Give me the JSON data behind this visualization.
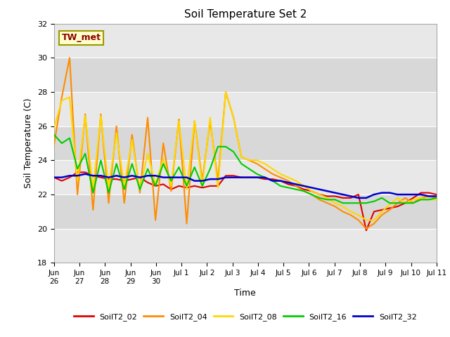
{
  "title": "Soil Temperature Set 2",
  "ylabel": "Soil Temperature (C)",
  "xlabel": "Time",
  "ylim": [
    18,
    32
  ],
  "xlim": [
    0,
    15
  ],
  "annotation_text": "TW_met",
  "annotation_fg": "#8B0000",
  "annotation_bg": "#FFFFCC",
  "annotation_border": "#999900",
  "fig_bg": "#ffffff",
  "band_colors": [
    "#E8E8E8",
    "#D8D8D8"
  ],
  "yticks": [
    18,
    20,
    22,
    24,
    26,
    28,
    30,
    32
  ],
  "tick_labels": [
    "Jun\n26",
    "Jun\n27",
    "Jun\n28",
    "Jun\n29",
    "Jun\n30",
    "Jul 1",
    "Jul 2",
    "Jul 3",
    "Jul 4",
    "Jul 5",
    "Jul 6",
    "Jul 7",
    "Jul 8",
    "Jul 9",
    "Jul 10",
    "Jul 11"
  ],
  "series": {
    "SoilT2_02": {
      "color": "#DD0000",
      "lw": 1.5,
      "y": [
        23.0,
        22.8,
        23.0,
        23.3,
        23.3,
        23.1,
        23.0,
        22.9,
        22.9,
        22.8,
        22.9,
        23.0,
        22.7,
        22.5,
        22.6,
        22.3,
        22.5,
        22.4,
        22.5,
        22.4,
        22.5,
        22.5,
        23.1,
        23.1,
        23.0,
        23.0,
        23.0,
        22.9,
        22.9,
        22.8,
        22.6,
        22.5,
        22.3,
        22.2,
        22.0,
        21.9,
        21.9,
        21.8,
        21.8,
        22.0,
        19.9,
        21.0,
        21.1,
        21.2,
        21.3,
        21.5,
        21.8,
        22.1,
        22.1,
        22.0
      ]
    },
    "SoilT2_04": {
      "color": "#FF8C00",
      "lw": 1.5,
      "y": [
        24.9,
        27.7,
        30.0,
        22.0,
        26.7,
        21.1,
        26.7,
        21.5,
        26.0,
        21.5,
        25.5,
        22.1,
        26.5,
        20.5,
        25.0,
        22.2,
        26.4,
        20.3,
        26.3,
        22.8,
        26.3,
        22.8,
        28.0,
        26.5,
        24.2,
        24.0,
        23.8,
        23.5,
        23.2,
        23.0,
        22.8,
        22.5,
        22.2,
        22.0,
        21.7,
        21.5,
        21.3,
        21.0,
        20.8,
        20.5,
        20.0,
        20.3,
        20.8,
        21.1,
        21.5,
        21.8,
        21.5,
        21.8,
        21.9,
        21.8
      ]
    },
    "SoilT2_08": {
      "color": "#FFD700",
      "lw": 1.5,
      "y": [
        25.9,
        27.5,
        27.7,
        22.8,
        26.6,
        22.3,
        26.6,
        22.4,
        25.6,
        22.5,
        25.2,
        22.3,
        24.4,
        22.6,
        24.1,
        22.5,
        26.3,
        22.3,
        26.3,
        22.5,
        26.5,
        22.4,
        28.0,
        26.5,
        24.2,
        24.0,
        24.0,
        23.8,
        23.5,
        23.2,
        23.0,
        22.8,
        22.5,
        22.2,
        22.0,
        21.8,
        21.5,
        21.3,
        21.0,
        20.8,
        20.5,
        20.5,
        21.0,
        21.4,
        21.8,
        21.5,
        21.7,
        21.8,
        21.7,
        21.7
      ]
    },
    "SoilT2_16": {
      "color": "#00CC00",
      "lw": 1.5,
      "y": [
        25.5,
        25.0,
        25.3,
        23.5,
        24.4,
        22.1,
        24.0,
        22.1,
        23.8,
        22.3,
        23.8,
        22.3,
        23.5,
        22.5,
        23.8,
        22.8,
        23.6,
        22.5,
        23.6,
        22.5,
        23.5,
        24.8,
        24.8,
        24.5,
        23.8,
        23.5,
        23.2,
        23.0,
        22.8,
        22.5,
        22.4,
        22.3,
        22.2,
        22.0,
        21.8,
        21.7,
        21.7,
        21.5,
        21.5,
        21.5,
        21.5,
        21.6,
        21.8,
        21.5,
        21.5,
        21.5,
        21.5,
        21.7,
        21.7,
        21.8
      ]
    },
    "SoilT2_32": {
      "color": "#0000CC",
      "lw": 1.8,
      "y": [
        23.0,
        23.0,
        23.1,
        23.1,
        23.2,
        23.1,
        23.1,
        23.0,
        23.1,
        23.0,
        23.1,
        23.0,
        23.1,
        23.1,
        23.0,
        23.0,
        23.0,
        23.0,
        22.8,
        22.8,
        22.9,
        22.9,
        23.0,
        23.0,
        23.0,
        23.0,
        23.0,
        23.0,
        22.8,
        22.8,
        22.7,
        22.6,
        22.5,
        22.4,
        22.3,
        22.2,
        22.1,
        22.0,
        21.9,
        21.8,
        21.8,
        22.0,
        22.1,
        22.1,
        22.0,
        22.0,
        22.0,
        22.0,
        21.9,
        21.9
      ]
    }
  },
  "legend_items": [
    "SoilT2_02",
    "SoilT2_04",
    "SoilT2_08",
    "SoilT2_16",
    "SoilT2_32"
  ],
  "legend_colors": [
    "#DD0000",
    "#FF8C00",
    "#FFD700",
    "#00CC00",
    "#0000CC"
  ]
}
